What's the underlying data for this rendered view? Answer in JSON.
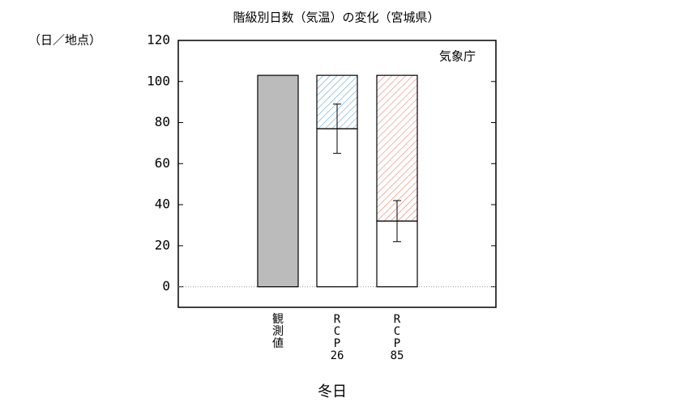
{
  "chart_data": {
    "type": "bar",
    "title": "階級別日数（気温）の変化（宮城県）",
    "y_unit": "（日／地点）",
    "source": "気象庁",
    "x_label": "冬日",
    "categories": [
      "観\n測\n値",
      "R\nC\nP\n26",
      "R\nC\nP\n85"
    ],
    "values": [
      103,
      77,
      32
    ],
    "colors": [
      "#bbbbbb",
      "#ffffff",
      "#ffffff"
    ],
    "change": [
      null,
      26,
      71
    ],
    "change_colors": [
      null,
      "#4a9cc8",
      "#e06a5a"
    ],
    "errors": [
      null,
      12,
      10
    ],
    "ylim": [
      -10,
      120
    ],
    "yticks": [
      0,
      20,
      40,
      60,
      80,
      100,
      120
    ]
  }
}
